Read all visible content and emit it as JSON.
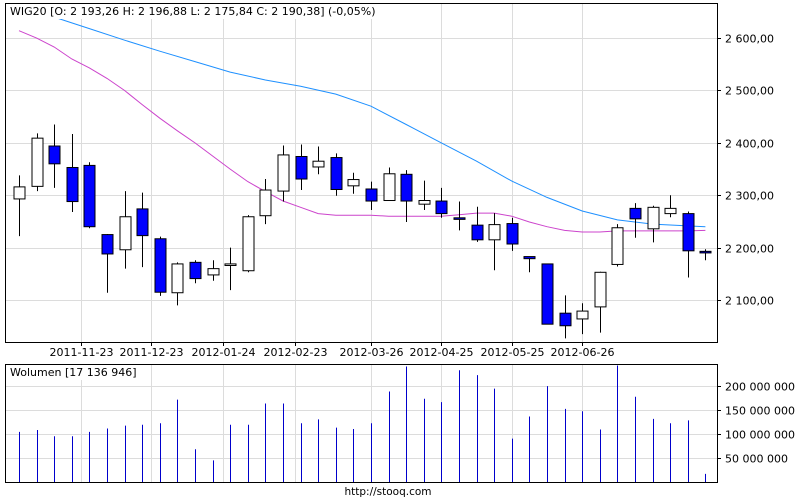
{
  "footer_url": "http://stooq.com",
  "chart_data": [
    {
      "type": "candlestick",
      "title": "WIG20 [O: 2 193,26  H: 2 196,88  L: 2 175,84  C: 2 190,38] (-0,05%)",
      "ylim": [
        2020,
        2665
      ],
      "y_ticks": [
        2100,
        2200,
        2300,
        2400,
        2500,
        2600
      ],
      "y_tick_labels": [
        "2 100,00",
        "2 200,00",
        "2 300,00",
        "2 400,00",
        "2 500,00",
        "2 600,00"
      ],
      "x_tick_labels": [
        "2011-11-23",
        "2011-12-23",
        "2012-01-24",
        "2012-02-23",
        "2012-03-26",
        "2012-04-25",
        "2012-05-25",
        "2012-06-26"
      ],
      "x_tick_index": [
        3.5,
        7.5,
        11.6,
        15.7,
        20,
        24,
        28,
        32
      ],
      "grid": true,
      "up_color": "#ffffff",
      "down_color": "#0000ff",
      "candles": [
        {
          "o": 2293,
          "h": 2338,
          "l": 2222,
          "c": 2316
        },
        {
          "o": 2317,
          "h": 2418,
          "l": 2308,
          "c": 2409
        },
        {
          "o": 2394,
          "h": 2435,
          "l": 2314,
          "c": 2360
        },
        {
          "o": 2353,
          "h": 2417,
          "l": 2268,
          "c": 2288
        },
        {
          "o": 2357,
          "h": 2363,
          "l": 2237,
          "c": 2240
        },
        {
          "o": 2225,
          "h": 2226,
          "l": 2114,
          "c": 2188
        },
        {
          "o": 2196,
          "h": 2308,
          "l": 2160,
          "c": 2259
        },
        {
          "o": 2274,
          "h": 2305,
          "l": 2163,
          "c": 2223
        },
        {
          "o": 2217,
          "h": 2221,
          "l": 2108,
          "c": 2115
        },
        {
          "o": 2114,
          "h": 2172,
          "l": 2090,
          "c": 2169
        },
        {
          "o": 2172,
          "h": 2176,
          "l": 2132,
          "c": 2141
        },
        {
          "o": 2148,
          "h": 2176,
          "l": 2137,
          "c": 2160
        },
        {
          "o": 2166,
          "h": 2200,
          "l": 2119,
          "c": 2169
        },
        {
          "o": 2156,
          "h": 2262,
          "l": 2153,
          "c": 2259
        },
        {
          "o": 2261,
          "h": 2331,
          "l": 2245,
          "c": 2310
        },
        {
          "o": 2308,
          "h": 2395,
          "l": 2288,
          "c": 2377
        },
        {
          "o": 2374,
          "h": 2397,
          "l": 2310,
          "c": 2331
        },
        {
          "o": 2354,
          "h": 2393,
          "l": 2340,
          "c": 2365
        },
        {
          "o": 2372,
          "h": 2380,
          "l": 2299,
          "c": 2311
        },
        {
          "o": 2318,
          "h": 2343,
          "l": 2303,
          "c": 2330
        },
        {
          "o": 2312,
          "h": 2326,
          "l": 2272,
          "c": 2289
        },
        {
          "o": 2290,
          "h": 2353,
          "l": 2289,
          "c": 2341
        },
        {
          "o": 2340,
          "h": 2348,
          "l": 2249,
          "c": 2289
        },
        {
          "o": 2283,
          "h": 2328,
          "l": 2272,
          "c": 2290
        },
        {
          "o": 2289,
          "h": 2314,
          "l": 2257,
          "c": 2265
        },
        {
          "o": 2257,
          "h": 2288,
          "l": 2233,
          "c": 2254
        },
        {
          "o": 2243,
          "h": 2278,
          "l": 2211,
          "c": 2215
        },
        {
          "o": 2215,
          "h": 2266,
          "l": 2157,
          "c": 2244
        },
        {
          "o": 2246,
          "h": 2257,
          "l": 2194,
          "c": 2207
        },
        {
          "o": 2183,
          "h": 2183,
          "l": 2153,
          "c": 2179
        },
        {
          "o": 2169,
          "h": 2169,
          "l": 2054,
          "c": 2054
        },
        {
          "o": 2075,
          "h": 2109,
          "l": 2027,
          "c": 2051
        },
        {
          "o": 2064,
          "h": 2094,
          "l": 2035,
          "c": 2079
        },
        {
          "o": 2087,
          "h": 2154,
          "l": 2038,
          "c": 2153
        },
        {
          "o": 2168,
          "h": 2245,
          "l": 2164,
          "c": 2238
        },
        {
          "o": 2275,
          "h": 2285,
          "l": 2219,
          "c": 2255
        },
        {
          "o": 2236,
          "h": 2280,
          "l": 2210,
          "c": 2277
        },
        {
          "o": 2265,
          "h": 2300,
          "l": 2258,
          "c": 2275
        },
        {
          "o": 2265,
          "h": 2269,
          "l": 2143,
          "c": 2194
        },
        {
          "o": 2193,
          "h": 2197,
          "l": 2176,
          "c": 2190
        }
      ],
      "series": [
        {
          "type": "line",
          "color": "#1e90ff",
          "x": [
            0,
            2,
            4,
            6,
            8,
            10,
            12,
            14,
            16,
            18,
            20,
            22,
            24,
            26,
            28,
            30,
            32,
            34,
            36,
            39
          ],
          "values": [
            2652,
            2640,
            2618,
            2596,
            2575,
            2555,
            2535,
            2520,
            2508,
            2493,
            2470,
            2435,
            2400,
            2365,
            2327,
            2296,
            2270,
            2253,
            2245,
            2240
          ]
        },
        {
          "type": "line",
          "color": "#cc44cc",
          "x": [
            0,
            1,
            2,
            3,
            4,
            5,
            6,
            7,
            8,
            9,
            10,
            11,
            12,
            13,
            14,
            15,
            16,
            17,
            18,
            19,
            20,
            21,
            22,
            23,
            24,
            25,
            26,
            27,
            28,
            29,
            30,
            31,
            32,
            33,
            34,
            35,
            36,
            37,
            38,
            39
          ],
          "values": [
            2614,
            2600,
            2583,
            2560,
            2543,
            2523,
            2500,
            2473,
            2447,
            2423,
            2400,
            2375,
            2350,
            2326,
            2307,
            2289,
            2277,
            2265,
            2262,
            2262,
            2262,
            2260,
            2260,
            2260,
            2260,
            2263,
            2266,
            2266,
            2260,
            2249,
            2240,
            2233,
            2230,
            2230,
            2232,
            2232,
            2232,
            2232,
            2232,
            2233
          ]
        }
      ]
    },
    {
      "type": "bar",
      "title": "Wolumen [17 136 946]",
      "ylim": [
        0,
        243000000
      ],
      "y_ticks": [
        50000000,
        100000000,
        150000000,
        200000000
      ],
      "y_tick_labels": [
        "50 000 000",
        "100 000 000",
        "150 000 000",
        "200 000 000"
      ],
      "grid": true,
      "color": "#0000cc",
      "values": [
        104000000,
        108000000,
        95000000,
        95000000,
        104000000,
        111000000,
        117000000,
        119000000,
        122000000,
        171000000,
        68000000,
        45000000,
        119000000,
        119000000,
        163000000,
        163000000,
        122000000,
        130000000,
        113000000,
        110000000,
        122000000,
        188000000,
        240000000,
        173000000,
        166000000,
        232000000,
        222000000,
        194000000,
        90000000,
        136000000,
        199000000,
        152000000,
        147000000,
        109000000,
        242000000,
        177000000,
        131000000,
        122000000,
        128000000,
        17000000
      ]
    }
  ]
}
